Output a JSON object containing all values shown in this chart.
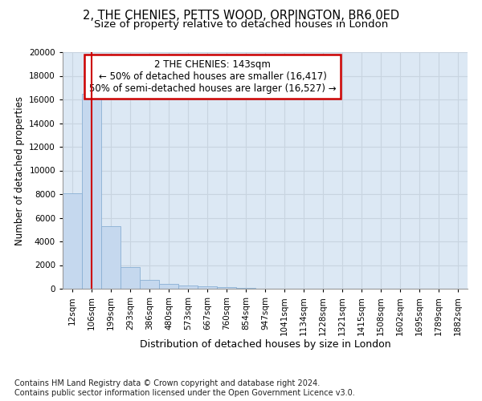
{
  "title_line1": "2, THE CHENIES, PETTS WOOD, ORPINGTON, BR6 0ED",
  "title_line2": "Size of property relative to detached houses in London",
  "xlabel": "Distribution of detached houses by size in London",
  "ylabel": "Number of detached properties",
  "categories": [
    "12sqm",
    "106sqm",
    "199sqm",
    "293sqm",
    "386sqm",
    "480sqm",
    "573sqm",
    "667sqm",
    "760sqm",
    "854sqm",
    "947sqm",
    "1041sqm",
    "1134sqm",
    "1228sqm",
    "1321sqm",
    "1415sqm",
    "1508sqm",
    "1602sqm",
    "1695sqm",
    "1789sqm",
    "1882sqm"
  ],
  "values": [
    8100,
    16500,
    5300,
    1850,
    750,
    380,
    270,
    220,
    160,
    100,
    0,
    0,
    0,
    0,
    0,
    0,
    0,
    0,
    0,
    0,
    0
  ],
  "bar_color": "#c5d8ee",
  "bar_edge_color": "#8ab0d4",
  "annotation_box_text": "2 THE CHENIES: 143sqm\n← 50% of detached houses are smaller (16,417)\n50% of semi-detached houses are larger (16,527) →",
  "annotation_box_color": "#ffffff",
  "annotation_box_edge_color": "#cc0000",
  "vline_x": 1.0,
  "vline_color": "#cc0000",
  "ylim": [
    0,
    20000
  ],
  "yticks": [
    0,
    2000,
    4000,
    6000,
    8000,
    10000,
    12000,
    14000,
    16000,
    18000,
    20000
  ],
  "grid_color": "#c8d4e0",
  "background_color": "#dce8f4",
  "footnote": "Contains HM Land Registry data © Crown copyright and database right 2024.\nContains public sector information licensed under the Open Government Licence v3.0.",
  "title_fontsize": 10.5,
  "subtitle_fontsize": 9.5,
  "xlabel_fontsize": 9,
  "ylabel_fontsize": 8.5,
  "tick_fontsize": 7.5,
  "footnote_fontsize": 7,
  "annot_fontsize": 8.5
}
